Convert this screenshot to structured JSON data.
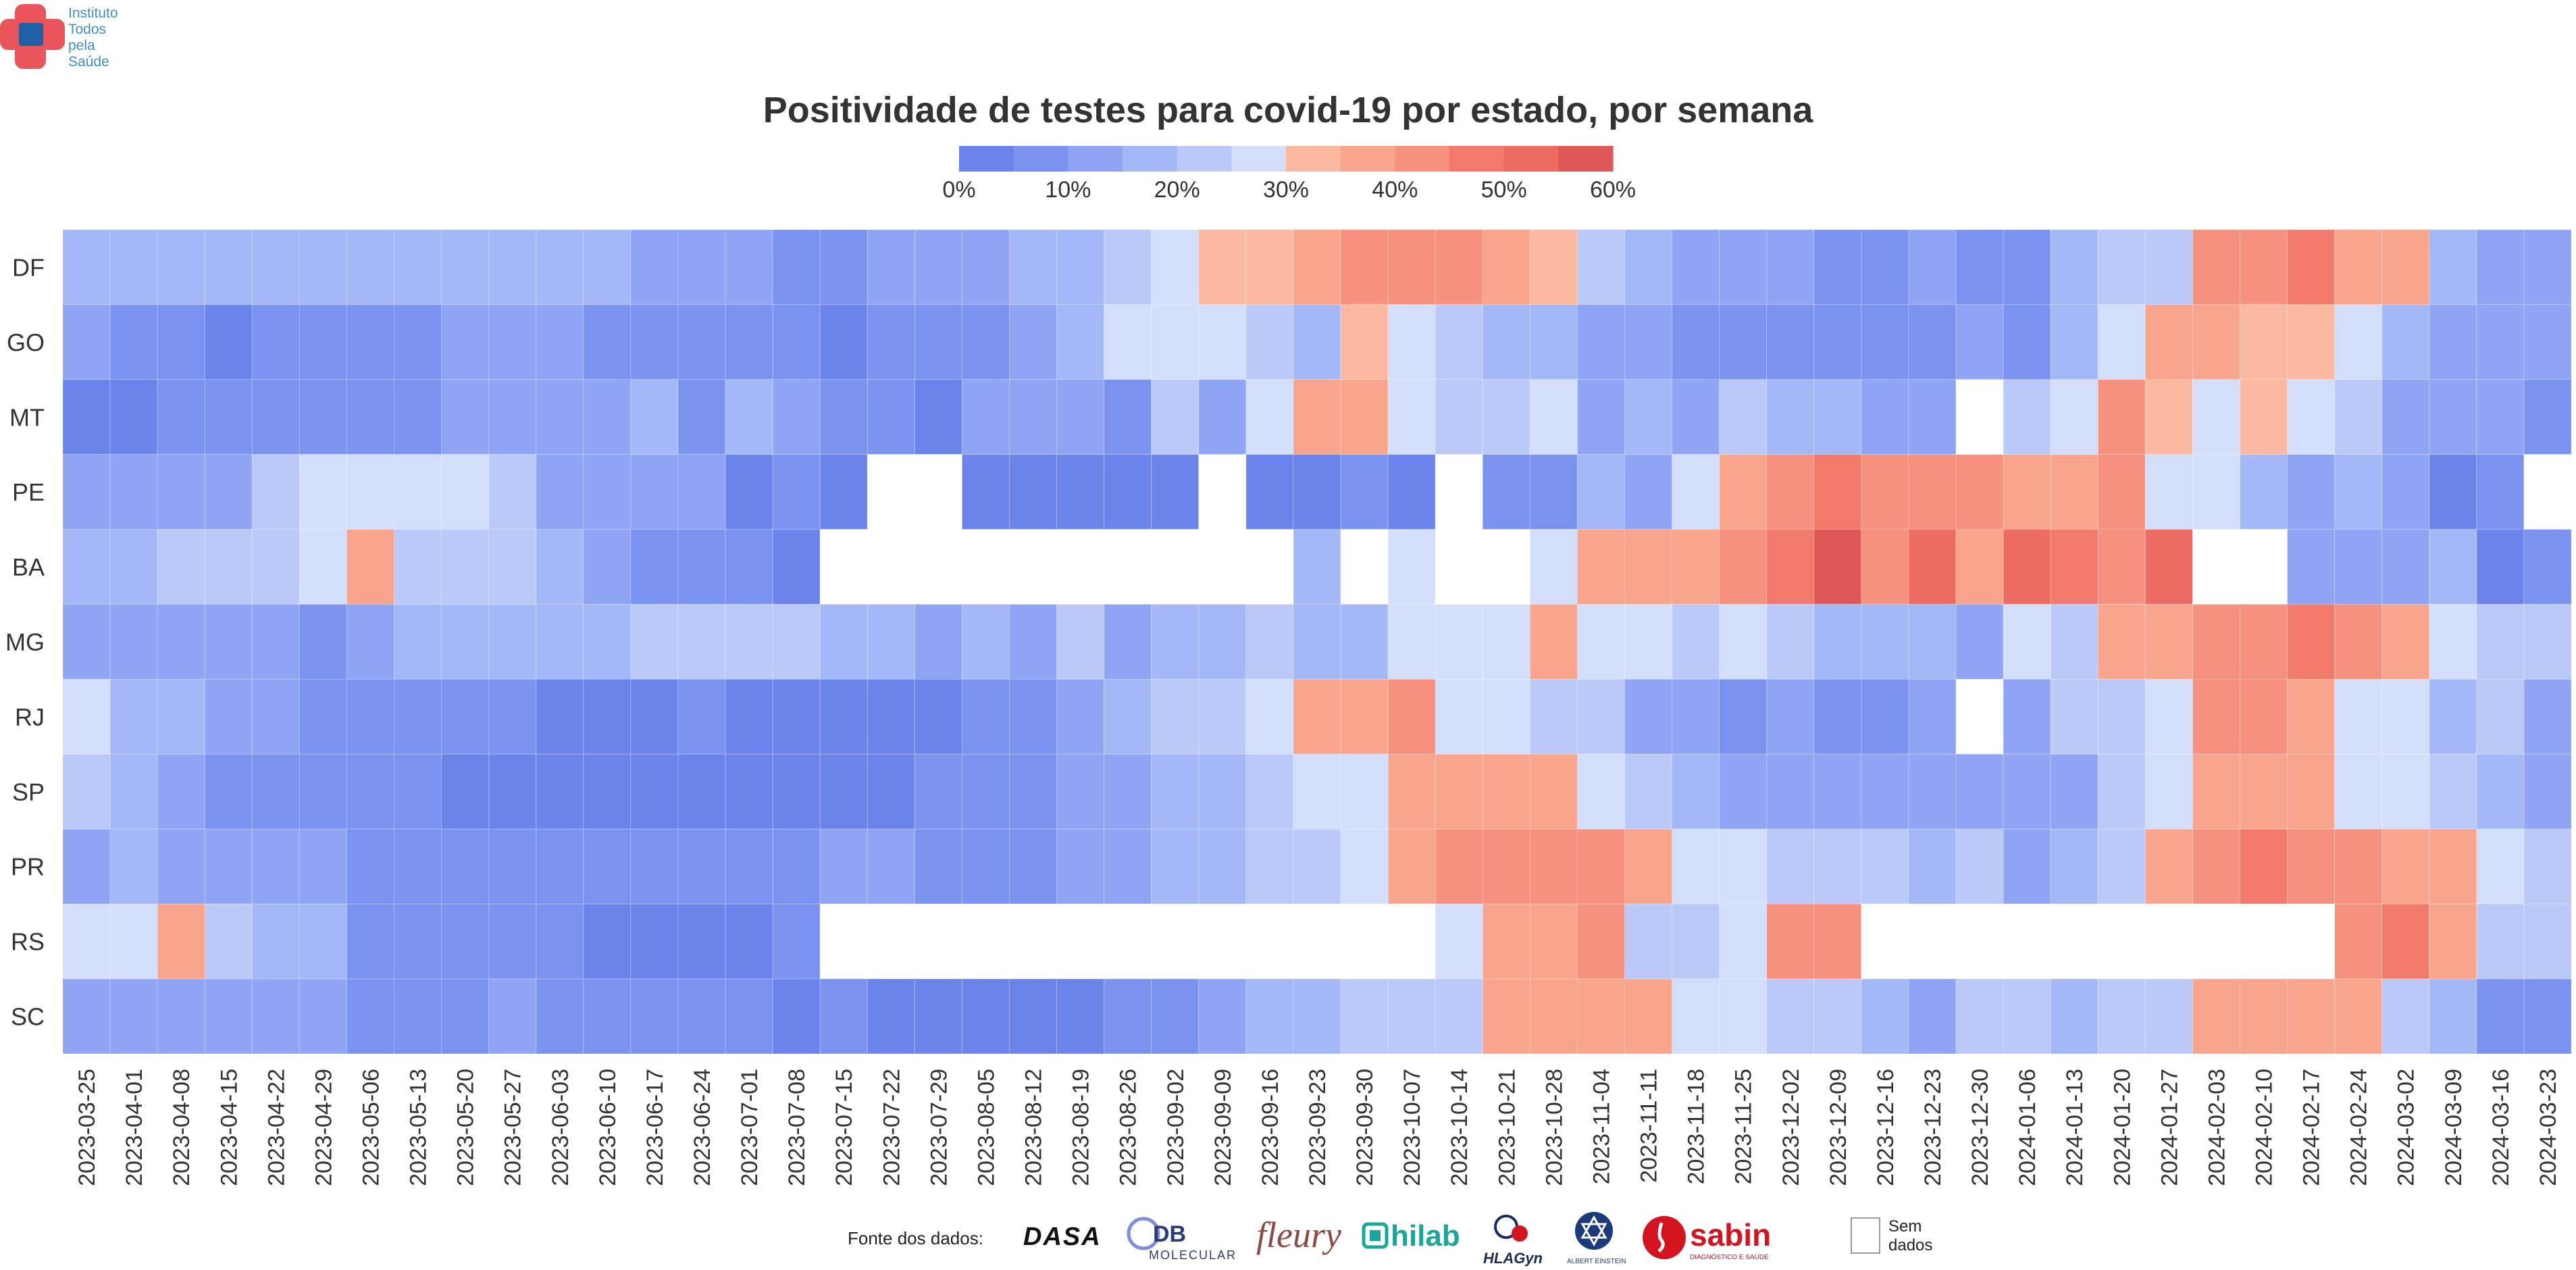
{
  "branding": {
    "logo_text": "Instituto\nTodos\npela\nSaúde",
    "colors": {
      "cross_outer": "#e9555a",
      "cross_inner": "#1f5fa6"
    }
  },
  "chart_data": {
    "type": "heatmap",
    "title": "Positividade de testes para covid-19 por estado, por semana",
    "xlabel": "",
    "ylabel": "",
    "value_unit": "%",
    "color_scale": {
      "min": 0,
      "max": 60,
      "step": 5,
      "tick_labels": [
        "0%",
        "10%",
        "20%",
        "30%",
        "40%",
        "50%",
        "60%"
      ],
      "colors": [
        "#6b84ec",
        "#7b93f0",
        "#8fa4f4",
        "#a4b7f6",
        "#bac9f8",
        "#d3dffa",
        "#fbb9a1",
        "#f9a58e",
        "#f7917f",
        "#f27a6c",
        "#ec6b62",
        "#dd5856"
      ]
    },
    "x": [
      "2023-03-25",
      "2023-04-01",
      "2023-04-08",
      "2023-04-15",
      "2023-04-22",
      "2023-04-29",
      "2023-05-06",
      "2023-05-13",
      "2023-05-20",
      "2023-05-27",
      "2023-06-03",
      "2023-06-10",
      "2023-06-17",
      "2023-06-24",
      "2023-07-01",
      "2023-07-08",
      "2023-07-15",
      "2023-07-22",
      "2023-07-29",
      "2023-08-05",
      "2023-08-12",
      "2023-08-19",
      "2023-08-26",
      "2023-09-02",
      "2023-09-09",
      "2023-09-16",
      "2023-09-23",
      "2023-09-30",
      "2023-10-07",
      "2023-10-14",
      "2023-10-21",
      "2023-10-28",
      "2023-11-04",
      "2023-11-11",
      "2023-11-18",
      "2023-11-25",
      "2023-12-02",
      "2023-12-09",
      "2023-12-16",
      "2023-12-23",
      "2023-12-30",
      "2024-01-06",
      "2024-01-13",
      "2024-01-20",
      "2024-01-27",
      "2024-02-03",
      "2024-02-10",
      "2024-02-17",
      "2024-02-24",
      "2024-03-02",
      "2024-03-09",
      "2024-03-16",
      "2024-03-23"
    ],
    "y": [
      "DF",
      "GO",
      "MT",
      "PE",
      "BA",
      "MG",
      "RJ",
      "SP",
      "PR",
      "RS",
      "SC"
    ],
    "values": [
      [
        17,
        17,
        17,
        17,
        17,
        17,
        17,
        17,
        17,
        17,
        17,
        17,
        13,
        13,
        13,
        8,
        8,
        13,
        13,
        13,
        17,
        17,
        22,
        27,
        32,
        32,
        37,
        42,
        42,
        42,
        37,
        32,
        22,
        17,
        13,
        13,
        13,
        8,
        8,
        13,
        8,
        8,
        17,
        22,
        22,
        42,
        42,
        47,
        37,
        37,
        17,
        13,
        13
      ],
      [
        12,
        8,
        8,
        3,
        8,
        8,
        8,
        8,
        12,
        12,
        12,
        8,
        8,
        8,
        8,
        8,
        3,
        8,
        8,
        8,
        12,
        17,
        27,
        27,
        27,
        22,
        17,
        32,
        27,
        22,
        17,
        17,
        12,
        12,
        8,
        8,
        8,
        8,
        8,
        8,
        12,
        8,
        17,
        27,
        37,
        37,
        32,
        32,
        27,
        17,
        12,
        12,
        12
      ],
      [
        3,
        3,
        8,
        8,
        8,
        8,
        8,
        8,
        12,
        12,
        12,
        12,
        17,
        8,
        17,
        12,
        8,
        8,
        3,
        12,
        12,
        12,
        8,
        22,
        12,
        27,
        37,
        37,
        27,
        22,
        22,
        27,
        12,
        17,
        12,
        22,
        17,
        17,
        12,
        12,
        null,
        22,
        27,
        42,
        32,
        27,
        32,
        27,
        22,
        12,
        12,
        12,
        8
      ],
      [
        12,
        12,
        12,
        12,
        22,
        27,
        27,
        27,
        27,
        22,
        12,
        12,
        12,
        12,
        3,
        8,
        3,
        null,
        null,
        3,
        3,
        3,
        3,
        3,
        null,
        3,
        3,
        8,
        3,
        null,
        8,
        8,
        17,
        12,
        27,
        37,
        42,
        47,
        42,
        42,
        42,
        37,
        37,
        42,
        27,
        27,
        17,
        12,
        17,
        12,
        3,
        8,
        null
      ],
      [
        17,
        17,
        22,
        22,
        22,
        27,
        37,
        22,
        22,
        22,
        17,
        12,
        8,
        8,
        8,
        3,
        null,
        null,
        null,
        null,
        null,
        null,
        null,
        null,
        null,
        null,
        17,
        null,
        27,
        null,
        null,
        27,
        37,
        37,
        37,
        42,
        47,
        57,
        42,
        52,
        37,
        52,
        47,
        42,
        52,
        null,
        null,
        12,
        12,
        12,
        17,
        3,
        8
      ],
      [
        12,
        12,
        12,
        12,
        12,
        8,
        12,
        17,
        17,
        17,
        17,
        17,
        22,
        22,
        22,
        22,
        17,
        17,
        12,
        17,
        12,
        22,
        12,
        17,
        17,
        22,
        17,
        17,
        27,
        27,
        27,
        37,
        27,
        27,
        22,
        27,
        22,
        17,
        17,
        17,
        12,
        27,
        22,
        37,
        37,
        42,
        42,
        47,
        42,
        37,
        27,
        22,
        22
      ],
      [
        27,
        17,
        17,
        12,
        12,
        8,
        8,
        8,
        8,
        8,
        3,
        3,
        3,
        8,
        3,
        3,
        3,
        3,
        3,
        8,
        8,
        12,
        17,
        22,
        22,
        27,
        37,
        37,
        42,
        27,
        27,
        22,
        22,
        12,
        12,
        8,
        12,
        8,
        8,
        12,
        null,
        12,
        22,
        22,
        27,
        42,
        42,
        37,
        27,
        27,
        17,
        22,
        12
      ],
      [
        22,
        17,
        12,
        8,
        8,
        8,
        8,
        8,
        3,
        3,
        3,
        3,
        3,
        3,
        3,
        3,
        3,
        3,
        8,
        8,
        8,
        12,
        12,
        17,
        17,
        22,
        27,
        27,
        37,
        37,
        37,
        37,
        27,
        22,
        17,
        12,
        12,
        12,
        12,
        12,
        12,
        12,
        12,
        22,
        27,
        37,
        37,
        37,
        27,
        27,
        22,
        17,
        12
      ],
      [
        12,
        17,
        12,
        12,
        12,
        12,
        8,
        8,
        8,
        8,
        8,
        8,
        8,
        8,
        8,
        8,
        12,
        12,
        8,
        8,
        8,
        12,
        12,
        17,
        17,
        22,
        22,
        27,
        37,
        42,
        42,
        42,
        42,
        37,
        27,
        27,
        22,
        22,
        22,
        17,
        22,
        12,
        17,
        22,
        37,
        42,
        47,
        42,
        42,
        37,
        37,
        27,
        22
      ],
      [
        27,
        27,
        37,
        22,
        17,
        17,
        8,
        8,
        8,
        8,
        8,
        3,
        3,
        3,
        3,
        8,
        null,
        null,
        null,
        null,
        null,
        null,
        null,
        null,
        null,
        null,
        null,
        null,
        null,
        27,
        37,
        37,
        42,
        22,
        22,
        27,
        42,
        42,
        null,
        null,
        null,
        null,
        null,
        null,
        null,
        null,
        null,
        null,
        42,
        47,
        37,
        22,
        22
      ],
      [
        12,
        12,
        12,
        12,
        12,
        12,
        8,
        8,
        8,
        12,
        8,
        8,
        8,
        8,
        8,
        3,
        8,
        3,
        3,
        3,
        3,
        3,
        8,
        8,
        12,
        17,
        17,
        22,
        22,
        22,
        37,
        37,
        37,
        37,
        27,
        27,
        22,
        22,
        17,
        12,
        22,
        22,
        17,
        22,
        22,
        37,
        37,
        37,
        37,
        22,
        17,
        8,
        8
      ]
    ]
  },
  "footer": {
    "sources_label": "Fonte dos dados:",
    "sources": [
      {
        "name": "DASA",
        "text": "DASA",
        "color": "#111111"
      },
      {
        "name": "DB Molecular",
        "text": "DB",
        "subtext": "MOLECULAR",
        "color": "#2a3b7c"
      },
      {
        "name": "Fleury",
        "text": "fleury",
        "color": "#8b4b43"
      },
      {
        "name": "Hilab",
        "text": "hilab",
        "color": "#1aa79a"
      },
      {
        "name": "HLAGyn",
        "text": "HLAGyn",
        "color": "#1b2a5c"
      },
      {
        "name": "Albert Einstein",
        "text": "ALBERT EINSTEIN",
        "color": "#1b3a7c"
      },
      {
        "name": "Sabin",
        "text": "sabin",
        "subtext": "DIAGNÓSTICO E SAÚDE",
        "color": "#d3141f"
      }
    ],
    "no_data_label": "Sem\ndados"
  }
}
